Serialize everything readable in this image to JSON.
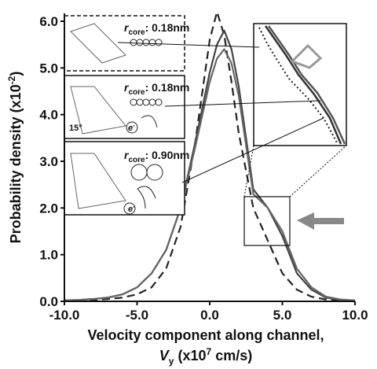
{
  "chart_data": {
    "type": "line",
    "x": [
      -10,
      -9,
      -8,
      -7,
      -6,
      -5,
      -4,
      -3,
      -2,
      -1,
      0,
      0.5,
      1,
      1.5,
      2,
      3,
      4,
      5,
      6,
      7,
      8,
      9,
      10
    ],
    "series": [
      {
        "color": "#222222",
        "dash": true,
        "values": [
          0.02,
          0.02,
          0.03,
          0.05,
          0.08,
          0.15,
          0.3,
          0.7,
          1.6,
          3.4,
          5.6,
          6.2,
          5.7,
          4.7,
          3.6,
          2.0,
          1.3,
          0.6,
          0.25,
          0.1,
          0.04,
          0.02,
          0.01
        ]
      },
      {
        "color": "#444444",
        "dash": false,
        "values": [
          0.02,
          0.03,
          0.05,
          0.08,
          0.15,
          0.3,
          0.6,
          1.1,
          2.0,
          3.4,
          4.9,
          5.5,
          5.8,
          5.4,
          4.6,
          2.4,
          2.0,
          1.4,
          0.6,
          0.25,
          0.08,
          0.03,
          0.02
        ]
      },
      {
        "color": "#666666",
        "dash": false,
        "values": [
          0.02,
          0.03,
          0.05,
          0.08,
          0.15,
          0.3,
          0.6,
          1.1,
          2.0,
          3.3,
          4.7,
          5.2,
          5.4,
          5.1,
          4.4,
          2.3,
          2.0,
          1.5,
          0.7,
          0.3,
          0.1,
          0.04,
          0.02
        ]
      }
    ],
    "xlim": [
      -10,
      10
    ],
    "ylim": [
      0,
      6
    ],
    "xticks": [
      {
        "value": -10,
        "label": "-10.0"
      },
      {
        "value": -5,
        "label": "-5.0"
      },
      {
        "value": 0,
        "label": "0.0"
      },
      {
        "value": 5,
        "label": "5.0"
      },
      {
        "value": 10,
        "label": "10.0"
      }
    ],
    "yticks": [
      {
        "value": 0,
        "label": "0.0"
      },
      {
        "value": 1,
        "label": "1.0"
      },
      {
        "value": 2,
        "label": "2.0"
      },
      {
        "value": 3,
        "label": "3.0"
      },
      {
        "value": 4,
        "label": "4.0"
      },
      {
        "value": 5,
        "label": "5.0"
      },
      {
        "value": 6,
        "label": "6.0"
      }
    ],
    "xlabel": "Velocity component along channel,",
    "xlabel2": {
      "v": "V",
      "sub": "y",
      "mid": " (x10",
      "sup": "7",
      "end": " cm/s)"
    },
    "ylabel": {
      "text": "Probability density  (x10",
      "sup": "-2",
      "end": ")"
    },
    "insets": [
      {
        "r": "r",
        "sub": "core",
        "text": ": 0.18nm"
      },
      {
        "r": "r",
        "sub": "core",
        "text": ": 0.18nm",
        "angle": "15°",
        "e": "e",
        "esup": "-"
      },
      {
        "r": "r",
        "sub": "core",
        "text": ": 0.90nm",
        "e": "e",
        "esup": "-"
      }
    ]
  }
}
